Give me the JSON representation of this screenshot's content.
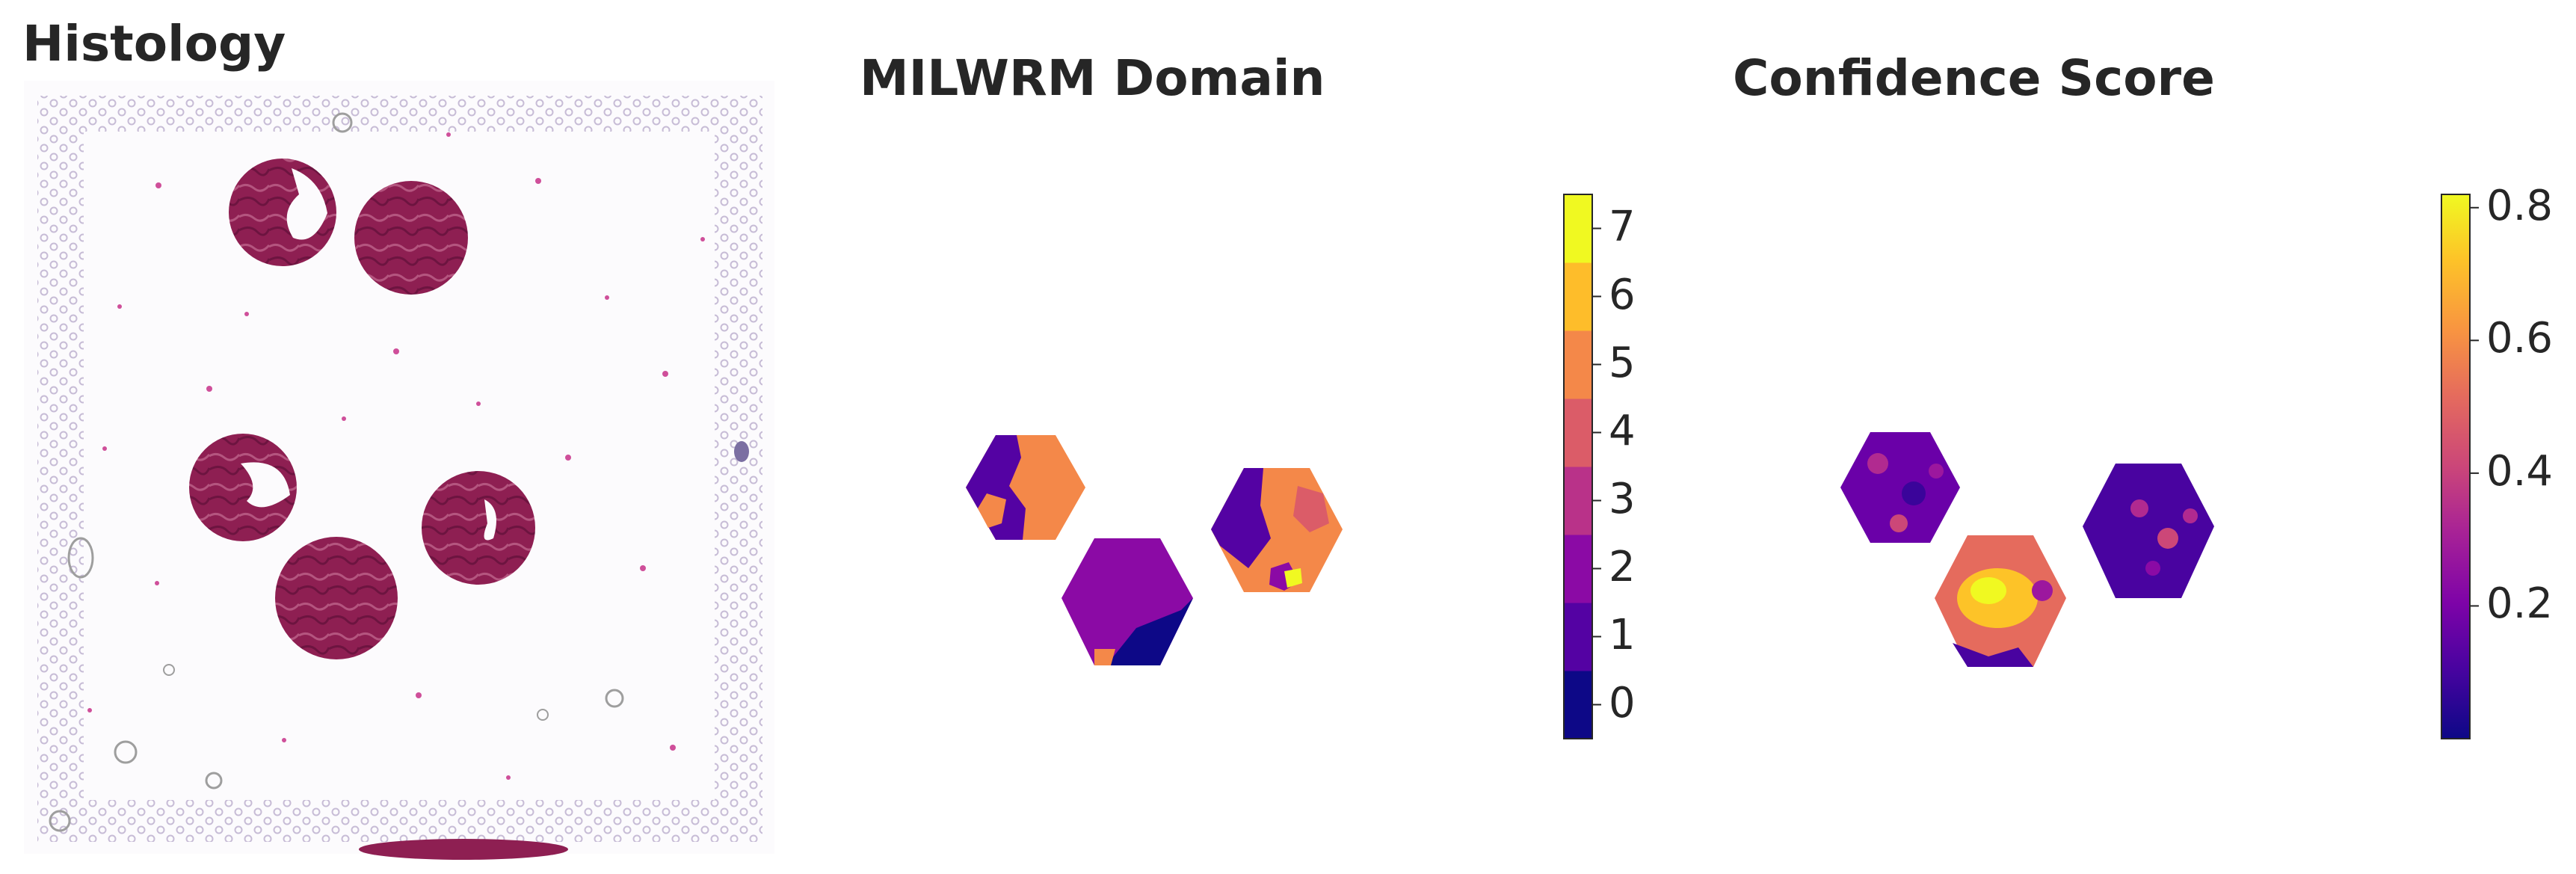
{
  "panels": {
    "histology": {
      "title": "Histology"
    },
    "domain": {
      "title": "MILWRM Domain"
    },
    "confidence": {
      "title": "Confidence Score"
    }
  },
  "domain_colorbar": {
    "ticks": [
      "0",
      "1",
      "2",
      "3",
      "4",
      "5",
      "6",
      "7"
    ],
    "colors": [
      "#0d0887",
      "#5402a3",
      "#8b0aa5",
      "#b93289",
      "#db5c68",
      "#f48849",
      "#febd2a",
      "#f0f921"
    ]
  },
  "confidence_colorbar": {
    "ticks": [
      "0.2",
      "0.4",
      "0.6",
      "0.8"
    ],
    "tick_values": [
      0.2,
      0.4,
      0.6,
      0.8
    ],
    "range": [
      0.0,
      0.82
    ],
    "colormap": "plasma"
  },
  "colors": {
    "tissue": "#8e1f52",
    "spot_ring": "#c7bcd6",
    "text": "#262626"
  }
}
